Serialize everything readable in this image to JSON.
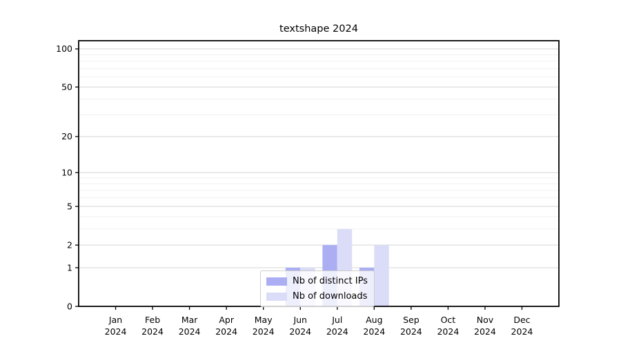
{
  "chart_data": {
    "type": "bar",
    "title": "textshape 2024",
    "categories": [
      "Jan 2024",
      "Feb 2024",
      "Mar 2024",
      "Apr 2024",
      "May 2024",
      "Jun 2024",
      "Jul 2024",
      "Aug 2024",
      "Sep 2024",
      "Oct 2024",
      "Nov 2024",
      "Dec 2024"
    ],
    "series": [
      {
        "name": "Nb of distinct IPs",
        "color": "#acaef4",
        "values": [
          0,
          0,
          0,
          0,
          0,
          1,
          2,
          1,
          0,
          0,
          0,
          0
        ]
      },
      {
        "name": "Nb of downloads",
        "color": "#dbddf8",
        "values": [
          0,
          0,
          0,
          0,
          0,
          1,
          3,
          2,
          0,
          0,
          0,
          0
        ]
      }
    ],
    "xlabel": "",
    "ylabel": "",
    "y_scale": "log1p",
    "ylim": [
      0,
      116
    ],
    "xlim": [
      -1,
      12
    ],
    "y_ticks": [
      0,
      1,
      2,
      5,
      10,
      20,
      50,
      100
    ],
    "y_minor_ticks": [
      3,
      4,
      6,
      7,
      8,
      9,
      30,
      40,
      60,
      70,
      80,
      90
    ],
    "grid": {
      "major_color": "#d4d4d4",
      "minor_color": "#f1f1f1"
    },
    "legend_position": "lower center",
    "spine_color": "#000000",
    "background": "#ffffff"
  }
}
